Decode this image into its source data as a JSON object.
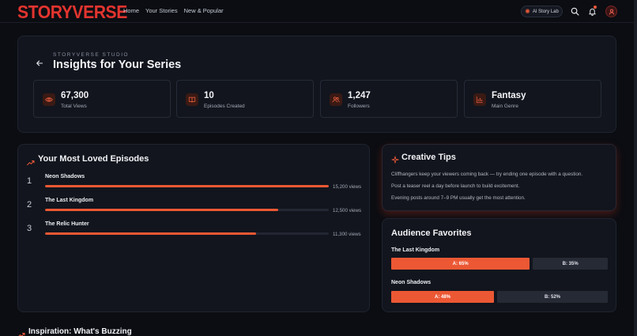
{
  "header": {
    "logo": "STORYVERSE",
    "nav": [
      "Home",
      "Your Stories",
      "New & Popular"
    ],
    "ai_button": "AI Story Lab"
  },
  "hero": {
    "eyebrow": "STORYVERSE STUDIO",
    "title": "Insights for Your Series",
    "stats": [
      {
        "value": "67,300",
        "label": "Total Views",
        "icon": "eye-icon"
      },
      {
        "value": "10",
        "label": "Episodes Created",
        "icon": "book-icon"
      },
      {
        "value": "1,247",
        "label": "Followers",
        "icon": "users-icon"
      },
      {
        "value": "Fantasy",
        "label": "Main Genre",
        "icon": "bar-chart-icon"
      }
    ]
  },
  "loved": {
    "title": "Your Most Loved Episodes",
    "episodes": [
      {
        "rank": "1",
        "name": "Neon Shadows",
        "views_label": "15,200 views",
        "fill": 1.0
      },
      {
        "rank": "2",
        "name": "The Last Kingdom",
        "views_label": "12,500 views",
        "fill": 0.822
      },
      {
        "rank": "3",
        "name": "The Relic Hunter",
        "views_label": "11,300 views",
        "fill": 0.743
      }
    ]
  },
  "tips": {
    "title": "Creative Tips",
    "items": [
      "Cliffhangers keep your viewers coming back — try ending one episode with a question.",
      "Post a teaser reel a day before launch to build excitement.",
      "Evening posts around 7–9 PM usually get the most attention."
    ]
  },
  "favorites": {
    "title": "Audience Favorites",
    "items": [
      {
        "name": "The Last Kingdom",
        "a_label": "A: 65%",
        "b_label": "B: 35%",
        "a": 65,
        "b": 35
      },
      {
        "name": "Neon Shadows",
        "a_label": "A: 48%",
        "b_label": "B: 52%",
        "a": 48,
        "b": 52
      }
    ]
  },
  "inspiration": {
    "title": "Inspiration: What's Buzzing"
  },
  "colors": {
    "accent": "#ec5834",
    "logo": "#e3342f",
    "background": "#0b0d12",
    "card": "#12151d"
  }
}
